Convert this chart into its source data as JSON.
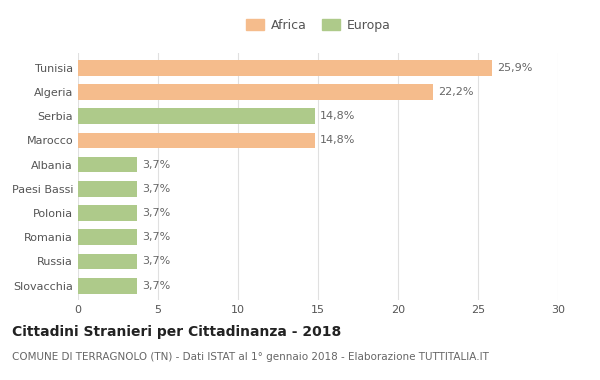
{
  "categories": [
    "Tunisia",
    "Algeria",
    "Serbia",
    "Marocco",
    "Albania",
    "Paesi Bassi",
    "Polonia",
    "Romania",
    "Russia",
    "Slovacchia"
  ],
  "values": [
    25.9,
    22.2,
    14.8,
    14.8,
    3.7,
    3.7,
    3.7,
    3.7,
    3.7,
    3.7
  ],
  "labels": [
    "25,9%",
    "22,2%",
    "14,8%",
    "14,8%",
    "3,7%",
    "3,7%",
    "3,7%",
    "3,7%",
    "3,7%",
    "3,7%"
  ],
  "continent": [
    "Africa",
    "Africa",
    "Europa",
    "Africa",
    "Europa",
    "Europa",
    "Europa",
    "Europa",
    "Europa",
    "Europa"
  ],
  "color_africa": "#F5BC8C",
  "color_europa": "#AECA8A",
  "xlim": [
    0,
    30
  ],
  "xticks": [
    0,
    5,
    10,
    15,
    20,
    25,
    30
  ],
  "title": "Cittadini Stranieri per Cittadinanza - 2018",
  "subtitle": "COMUNE DI TERRAGNOLO (TN) - Dati ISTAT al 1° gennaio 2018 - Elaborazione TUTTITALIA.IT",
  "legend_africa": "Africa",
  "legend_europa": "Europa",
  "background_color": "#ffffff",
  "grid_color": "#e0e0e0",
  "bar_height": 0.65,
  "label_fontsize": 8,
  "tick_label_fontsize": 8,
  "title_fontsize": 10,
  "subtitle_fontsize": 7.5
}
